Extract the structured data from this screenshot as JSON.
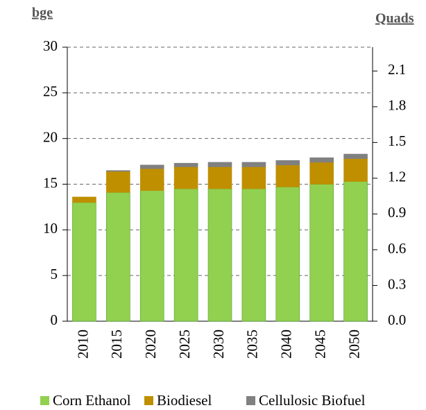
{
  "chart_data": {
    "type": "stacked_bar",
    "y_label": "bge",
    "y2_label": "Quads",
    "categories": [
      "2010",
      "2015",
      "2020",
      "2025",
      "2030",
      "2035",
      "2040",
      "2045",
      "2050"
    ],
    "series": [
      {
        "name": "Corn Ethanol",
        "color": "#92d050",
        "values": [
          13.0,
          14.1,
          14.3,
          14.5,
          14.5,
          14.5,
          14.7,
          15.0,
          15.3
        ]
      },
      {
        "name": "Biodiesel",
        "color": "#bf8f00",
        "values": [
          0.6,
          2.3,
          2.4,
          2.4,
          2.4,
          2.4,
          2.4,
          2.4,
          2.5
        ]
      },
      {
        "name": "Cellulosic Biofuel",
        "color": "#808080",
        "values": [
          0,
          0.1,
          0.4,
          0.4,
          0.5,
          0.5,
          0.5,
          0.5,
          0.5
        ]
      }
    ],
    "ylim": [
      0,
      30
    ],
    "yticks": [
      0,
      5,
      10,
      15,
      20,
      25,
      30
    ],
    "y2lim": [
      0,
      2.3
    ],
    "y2ticks": [
      {
        "value": 0,
        "label": "0.0"
      },
      0.3,
      0.6,
      0.9,
      1.2,
      1.5,
      1.8,
      2.1
    ],
    "grid": true,
    "legend": "bottom"
  }
}
